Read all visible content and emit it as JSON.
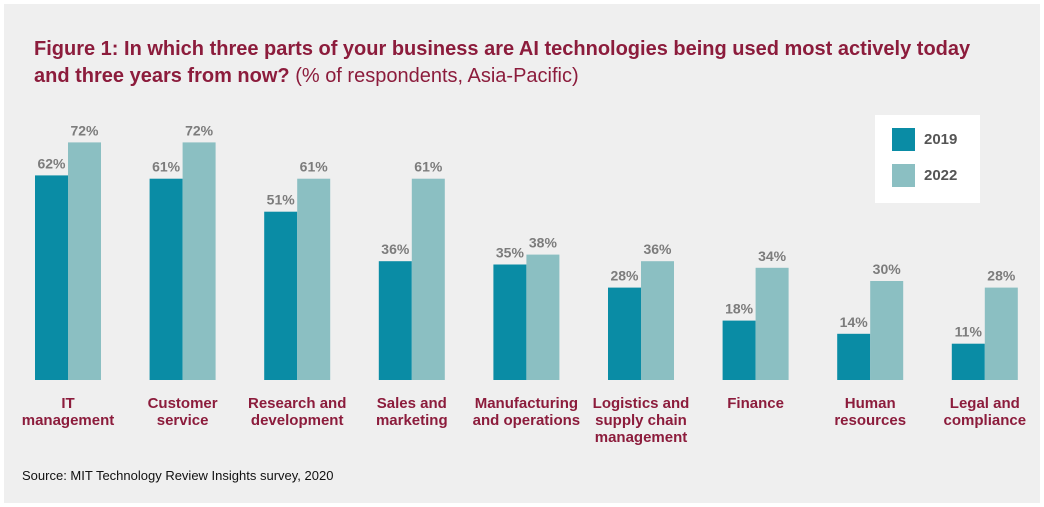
{
  "chart_data": {
    "type": "bar",
    "title": "Figure 1: In which three parts of your business are AI technologies being used most actively today and three years from now?",
    "subtitle": "(% of respondents, Asia-Pacific)",
    "categories": [
      "IT management",
      "Customer service",
      "Research and development",
      "Sales and marketing",
      "Manufacturing and operations",
      "Logistics and supply chain management",
      "Finance",
      "Human resources",
      "Legal and compliance"
    ],
    "series": [
      {
        "name": "2019",
        "color": "#0a8ca5",
        "values": [
          62,
          61,
          51,
          36,
          35,
          28,
          18,
          14,
          11
        ],
        "value_labels": [
          "62%",
          "61%",
          "51%",
          "36%",
          "35%",
          "28%",
          "18%",
          "14%",
          "11%"
        ]
      },
      {
        "name": "2022",
        "color": "#8bbfc2",
        "values": [
          72,
          72,
          61,
          61,
          38,
          36,
          34,
          30,
          28
        ],
        "value_labels": [
          "72%",
          "72%",
          "61%",
          "61%",
          "38%",
          "36%",
          "34%",
          "30%",
          "28%"
        ]
      }
    ],
    "legend": "upper right",
    "source": "Source: MIT Technology Review Insights survey, 2020"
  }
}
